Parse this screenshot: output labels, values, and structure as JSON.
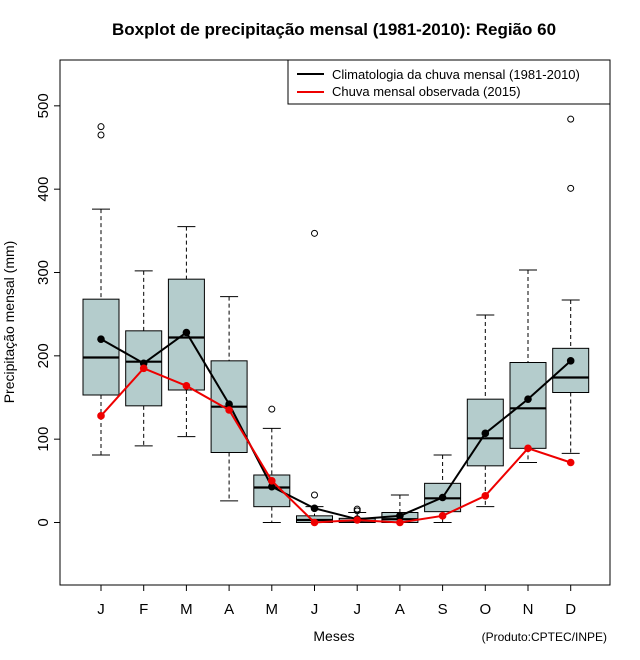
{
  "chart_data": {
    "type": "boxplot",
    "title": "Boxplot de precipitação mensal (1981-2010): Região 60",
    "xlabel": "Meses",
    "ylabel": "Precipitação mensal (mm)",
    "ylim": [
      -75,
      555
    ],
    "yticks": [
      0,
      100,
      200,
      300,
      400,
      500
    ],
    "categories": [
      "J",
      "F",
      "M",
      "A",
      "M",
      "J",
      "J",
      "A",
      "S",
      "O",
      "N",
      "D"
    ],
    "boxes": [
      {
        "whisker_low": 81,
        "q1": 153,
        "median": 198,
        "q3": 268,
        "whisker_high": 376,
        "outliers": [
          465,
          475
        ]
      },
      {
        "whisker_low": 92,
        "q1": 140,
        "median": 193,
        "q3": 230,
        "whisker_high": 302,
        "outliers": []
      },
      {
        "whisker_low": 103,
        "q1": 159,
        "median": 222,
        "q3": 292,
        "whisker_high": 355,
        "outliers": []
      },
      {
        "whisker_low": 26,
        "q1": 84,
        "median": 139,
        "q3": 194,
        "whisker_high": 271,
        "outliers": []
      },
      {
        "whisker_low": 0,
        "q1": 19,
        "median": 42,
        "q3": 57,
        "whisker_high": 113,
        "outliers": [
          136
        ]
      },
      {
        "whisker_low": 0,
        "q1": 0,
        "median": 3,
        "q3": 8,
        "whisker_high": 19,
        "outliers": [
          33,
          347
        ]
      },
      {
        "whisker_low": 0,
        "q1": 0,
        "median": 2,
        "q3": 5,
        "whisker_high": 12,
        "outliers": [
          14,
          16
        ]
      },
      {
        "whisker_low": 0,
        "q1": 0,
        "median": 4,
        "q3": 12,
        "whisker_high": 33,
        "outliers": []
      },
      {
        "whisker_low": 0,
        "q1": 13,
        "median": 29,
        "q3": 47,
        "whisker_high": 81,
        "outliers": []
      },
      {
        "whisker_low": 19,
        "q1": 68,
        "median": 101,
        "q3": 148,
        "whisker_high": 249,
        "outliers": []
      },
      {
        "whisker_low": 72,
        "q1": 89,
        "median": 137,
        "q3": 192,
        "whisker_high": 303,
        "outliers": []
      },
      {
        "whisker_low": 83,
        "q1": 156,
        "median": 174,
        "q3": 209,
        "whisker_high": 267,
        "outliers": [
          401,
          484
        ]
      }
    ],
    "series": [
      {
        "name": "Climatologia da chuva mensal (1981-2010)",
        "color": "#000000",
        "values": [
          220,
          191,
          228,
          142,
          43,
          17,
          4,
          8,
          30,
          107,
          148,
          194
        ]
      },
      {
        "name": "Chuva mensal observada (2015)",
        "color": "#ee0000",
        "values": [
          128,
          185,
          164,
          135,
          50,
          0,
          3,
          0,
          8,
          32,
          89,
          72
        ]
      }
    ],
    "legend_position": "top-right",
    "box_fill": "#b4cccc",
    "credit": "(Produto:CPTEC/INPE)"
  }
}
